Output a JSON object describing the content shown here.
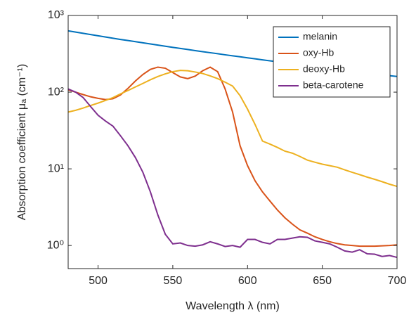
{
  "chart_data": {
    "type": "line",
    "xlabel": "Wavelength λ (nm)",
    "ylabel": "Absorption coefficient μₐ (cm⁻¹)",
    "x": [
      480,
      485,
      490,
      495,
      500,
      505,
      510,
      515,
      520,
      525,
      530,
      535,
      540,
      545,
      550,
      555,
      560,
      565,
      570,
      575,
      580,
      585,
      590,
      595,
      600,
      605,
      610,
      615,
      620,
      625,
      630,
      635,
      640,
      645,
      650,
      655,
      660,
      665,
      670,
      675,
      680,
      685,
      690,
      695,
      700
    ],
    "series": [
      {
        "name": "melanin",
        "color": "#0072BD",
        "values": [
          630,
          607,
          585,
          564,
          543,
          524,
          505,
          487,
          471,
          455,
          440,
          425,
          411,
          397,
          384,
          372,
          360,
          348,
          337,
          327,
          317,
          307,
          298,
          289,
          280,
          272,
          264,
          256,
          249,
          242,
          235,
          228,
          222,
          215,
          209,
          203,
          198,
          193,
          188,
          183,
          178,
          173,
          169,
          164,
          160
        ]
      },
      {
        "name": "oxy-Hb",
        "color": "#D95319",
        "values": [
          107,
          100,
          93,
          87,
          83,
          80,
          82,
          92,
          112,
          140,
          170,
          198,
          212,
          205,
          180,
          158,
          150,
          162,
          190,
          212,
          185,
          110,
          55,
          20,
          11,
          7,
          5,
          3.8,
          2.9,
          2.3,
          1.9,
          1.6,
          1.45,
          1.3,
          1.2,
          1.12,
          1.06,
          1.02,
          1.0,
          0.98,
          0.98,
          0.98,
          0.99,
          1.0,
          1.02
        ]
      },
      {
        "name": "deoxy-Hb",
        "color": "#EDB120",
        "values": [
          55,
          58,
          62,
          67,
          72,
          78,
          85,
          95,
          105,
          117,
          130,
          145,
          160,
          173,
          185,
          192,
          190,
          183,
          175,
          163,
          150,
          135,
          120,
          90,
          60,
          38,
          23,
          21,
          19,
          17,
          16,
          14.5,
          13,
          12.2,
          11.5,
          11,
          10.5,
          9.7,
          9,
          8.4,
          7.8,
          7.3,
          6.8,
          6.3,
          5.9
        ]
      },
      {
        "name": "beta-carotene",
        "color": "#7E2F8E",
        "values": [
          110,
          100,
          85,
          65,
          50,
          42,
          36,
          27,
          20,
          14,
          9,
          5,
          2.5,
          1.4,
          1.05,
          1.08,
          1.0,
          0.98,
          1.02,
          1.12,
          1.05,
          0.97,
          1.0,
          0.95,
          1.2,
          1.2,
          1.1,
          1.05,
          1.2,
          1.2,
          1.25,
          1.3,
          1.28,
          1.15,
          1.1,
          1.05,
          0.95,
          0.85,
          0.82,
          0.88,
          0.78,
          0.77,
          0.72,
          0.74,
          0.7
        ]
      }
    ],
    "xlim": [
      480,
      700
    ],
    "xticks": [
      500,
      550,
      600,
      650,
      700
    ],
    "ylim": [
      0.5,
      1000
    ],
    "yticks": [
      {
        "value": 1,
        "label": "10⁰"
      },
      {
        "value": 10,
        "label": "10¹"
      },
      {
        "value": 100,
        "label": "10²"
      },
      {
        "value": 1000,
        "label": "10³"
      }
    ],
    "log_y": true,
    "grid": false,
    "legend": "top-right"
  }
}
